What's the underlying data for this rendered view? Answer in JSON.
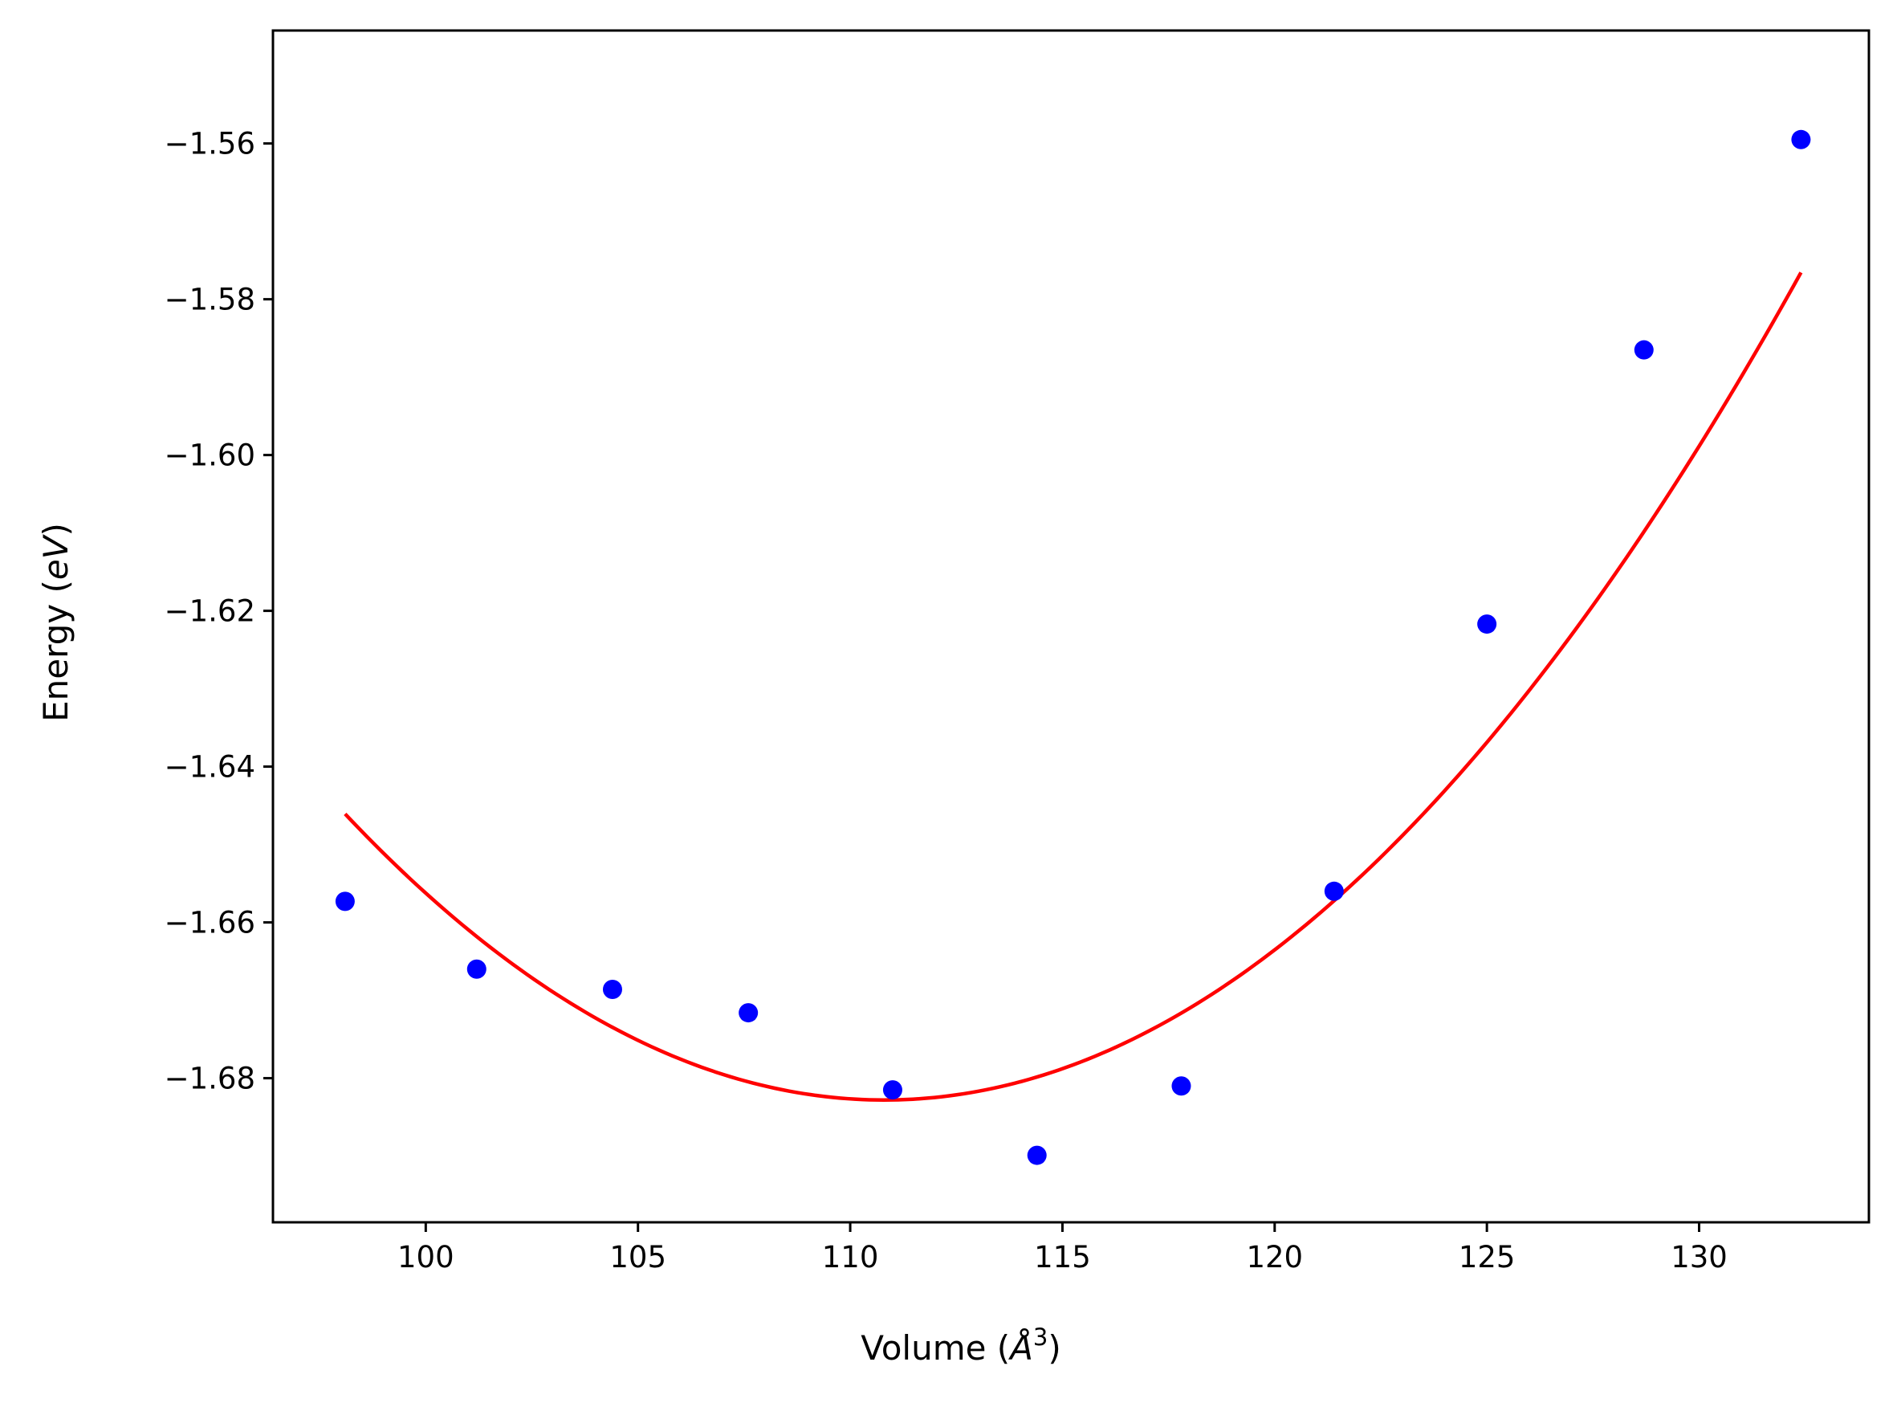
{
  "chart_data": {
    "type": "scatter",
    "title": "",
    "xlabel": "Volume (",
    "xlabel_unit": "Å",
    "xlabel_sup": "3",
    "xlabel_close": ")",
    "ylabel": "Energy (",
    "ylabel_unit": "eV",
    "ylabel_close": ")",
    "xlim": [
      96.4,
      134.0
    ],
    "ylim": [
      -1.6985,
      -1.5455
    ],
    "xticks": [
      100,
      105,
      110,
      115,
      120,
      125,
      130
    ],
    "xtick_labels": [
      "100",
      "105",
      "110",
      "115",
      "120",
      "125",
      "130"
    ],
    "yticks": [
      -1.68,
      -1.66,
      -1.64,
      -1.62,
      -1.6,
      -1.58,
      -1.56
    ],
    "ytick_labels": [
      "−1.68",
      "−1.66",
      "−1.64",
      "−1.62",
      "−1.60",
      "−1.58",
      "−1.56"
    ],
    "grid": false,
    "legend": "none",
    "series": [
      {
        "type": "scatter",
        "color": "#0000ff",
        "marker": "circle",
        "x": [
          98.1,
          101.2,
          104.4,
          107.6,
          111.0,
          114.4,
          117.8,
          121.4,
          125.0,
          128.7,
          132.4
        ],
        "y": [
          -1.6573,
          -1.666,
          -1.6686,
          -1.6716,
          -1.6815,
          -1.6899,
          -1.681,
          -1.656,
          -1.6217,
          -1.5865,
          -1.5595
        ]
      },
      {
        "type": "line",
        "color": "#ff0000",
        "fit": "quadratic",
        "x_min": 98.1,
        "x_max": 132.4,
        "x_vertex": 110.8,
        "y_vertex": -1.6828,
        "curvature": 0.0002277
      }
    ]
  }
}
